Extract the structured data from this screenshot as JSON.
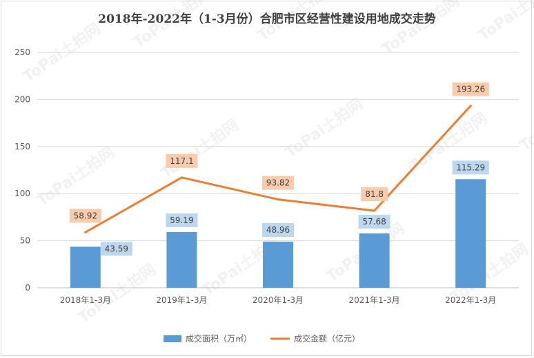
{
  "chart_data": {
    "type": "bar",
    "title": "2018年-2022年（1-3月份）合肥市区经营性建设用地成交走势",
    "categories": [
      "2018年1-3月",
      "2019年1-3月",
      "2020年1-3月",
      "2021年1-3月",
      "2022年1-3月"
    ],
    "ylim": [
      0,
      250
    ],
    "yticks": [
      0,
      50,
      100,
      150,
      200,
      250
    ],
    "grid": true,
    "legend_position": "bottom",
    "series": [
      {
        "name": "成交面积（万㎡）",
        "type": "bar",
        "values": [
          43.59,
          59.19,
          48.96,
          57.68,
          115.29
        ],
        "labels": [
          "43.59",
          "59.19",
          "48.96",
          "57.68",
          "115.29"
        ],
        "color": "#5b9bd5",
        "label_bg": "#bdd7ee"
      },
      {
        "name": "成交金额（亿元）",
        "type": "line",
        "values": [
          58.92,
          117.1,
          93.82,
          81.8,
          193.26
        ],
        "labels": [
          "58.92",
          "117.1",
          "93.82",
          "81.8",
          "193.26"
        ],
        "color": "#ed7d31",
        "label_bg": "#f8cbad"
      }
    ]
  },
  "watermark": {
    "brand": "ToPai",
    "name": "土拍网"
  }
}
